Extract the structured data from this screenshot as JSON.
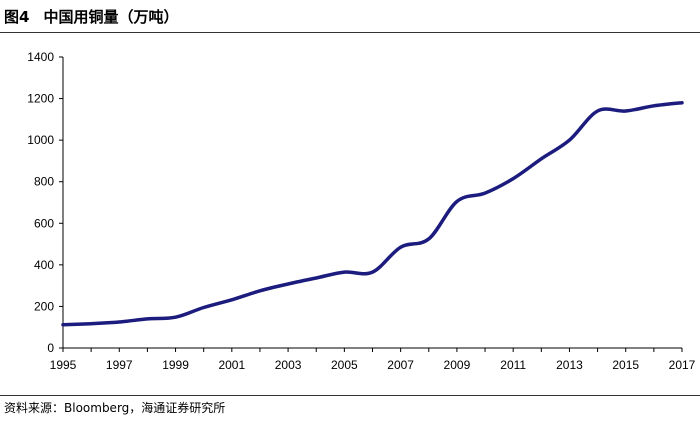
{
  "figure": {
    "label": "图4",
    "title": "中国用铜量（万吨）",
    "source": "资料来源：Bloomberg，海通证券研究所"
  },
  "colors": {
    "line": "#1c1c7e",
    "axis": "#000000"
  },
  "chart_data": {
    "type": "line",
    "title": "中国用铜量（万吨）",
    "xlabel": "",
    "ylabel": "",
    "xlim": [
      1995,
      2017
    ],
    "ylim": [
      0,
      1400
    ],
    "x_ticks": [
      "1995",
      "1997",
      "1999",
      "2001",
      "2003",
      "2005",
      "2007",
      "2009",
      "2011",
      "2013",
      "2015",
      "2017"
    ],
    "y_ticks": [
      "0",
      "200",
      "400",
      "600",
      "800",
      "1000",
      "1200",
      "1400"
    ],
    "grid": false,
    "legend": "none",
    "series": [
      {
        "x": [
          1995,
          1996,
          1997,
          1998,
          1999,
          2000,
          2001,
          2002,
          2003,
          2004,
          2005,
          2006,
          2007,
          2008,
          2009,
          2010,
          2011,
          2012,
          2013,
          2014,
          2015,
          2016,
          2017
        ],
        "y": [
          112,
          117,
          125,
          140,
          148,
          195,
          232,
          275,
          308,
          337,
          365,
          365,
          485,
          525,
          705,
          745,
          815,
          910,
          1000,
          1140,
          1140,
          1165,
          1180
        ]
      }
    ]
  }
}
